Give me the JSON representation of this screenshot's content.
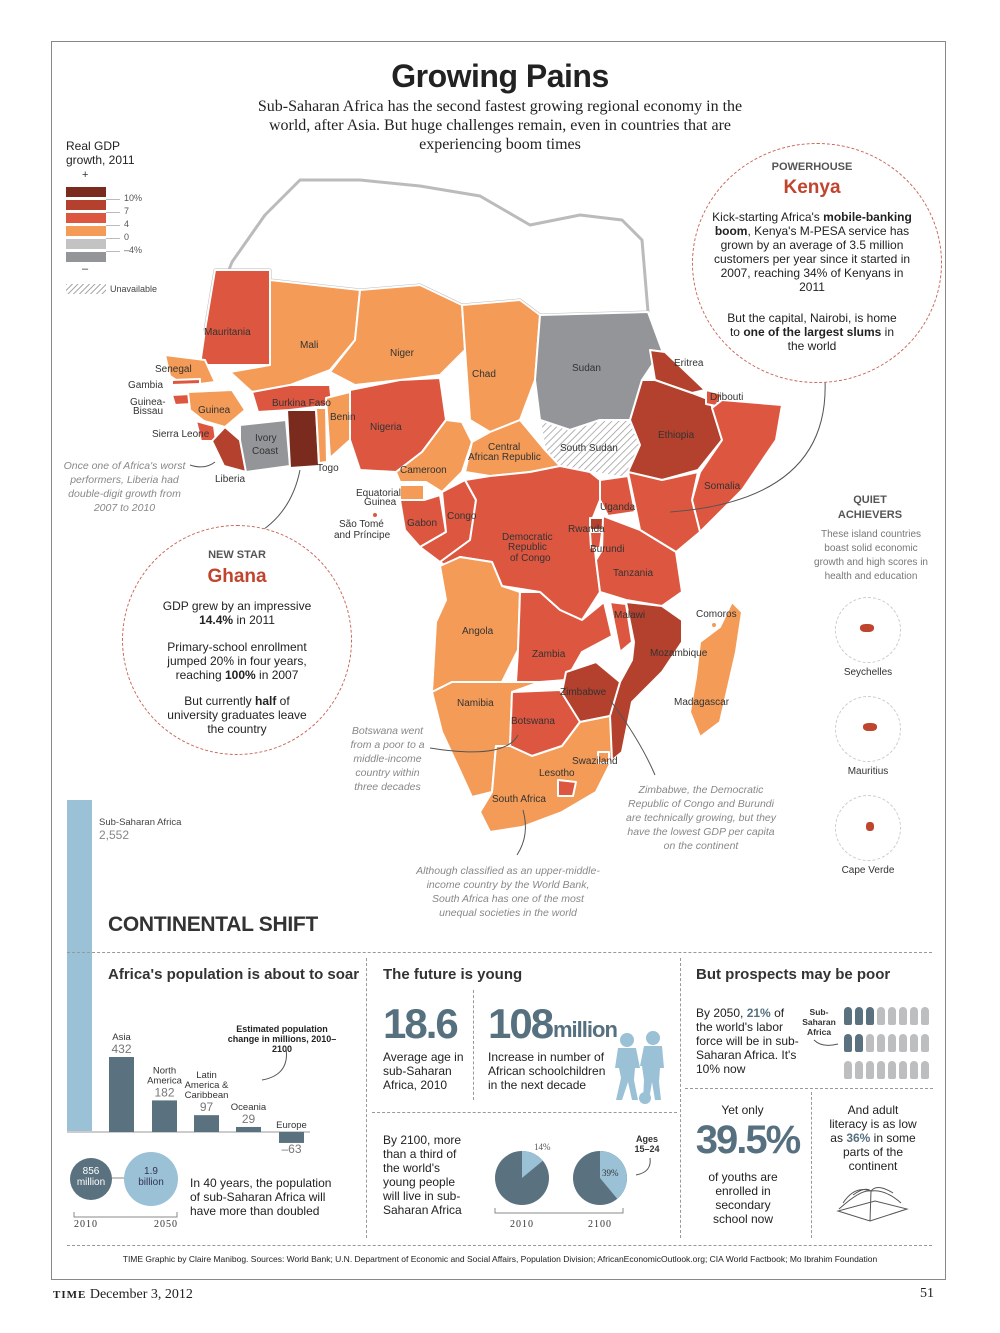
{
  "header": {
    "title": "Growing Pains",
    "subtitle": "Sub-Saharan Africa has the second fastest growing regional economy in the world, after Asia. But huge challenges remain, even in countries that are experiencing boom times"
  },
  "legend": {
    "title": "Real GDP growth, 2011",
    "plus": "+",
    "minus": "–",
    "ticks": [
      "10%",
      "7",
      "4",
      "0",
      "–4%"
    ],
    "colors": [
      "#7b2b1d",
      "#b3412d",
      "#dd5740",
      "#f39b57",
      "#c3c3c3",
      "#939598"
    ],
    "unavailable": "Unavailable"
  },
  "map": {
    "countries": [
      {
        "name": "Mauritania",
        "cat": 2
      },
      {
        "name": "Mali",
        "cat": 3
      },
      {
        "name": "Niger",
        "cat": 3
      },
      {
        "name": "Chad",
        "cat": 3
      },
      {
        "name": "Sudan",
        "cat": 5
      },
      {
        "name": "South Sudan",
        "cat": "na"
      },
      {
        "name": "Eritrea",
        "cat": 1
      },
      {
        "name": "Ethiopia",
        "cat": 1
      },
      {
        "name": "Djibouti",
        "cat": 2
      },
      {
        "name": "Somalia",
        "cat": 2
      },
      {
        "name": "Kenya",
        "cat": 2
      },
      {
        "name": "Uganda",
        "cat": 2
      },
      {
        "name": "Senegal",
        "cat": 3
      },
      {
        "name": "Gambia",
        "cat": 2
      },
      {
        "name": "Guinea-Bissau",
        "cat": 2
      },
      {
        "name": "Guinea",
        "cat": 3
      },
      {
        "name": "Sierra Leone",
        "cat": 2
      },
      {
        "name": "Liberia",
        "cat": 1
      },
      {
        "name": "Ivory Coast",
        "cat": 5
      },
      {
        "name": "Ghana",
        "cat": 0
      },
      {
        "name": "Burkina Faso",
        "cat": 2
      },
      {
        "name": "Togo",
        "cat": 3
      },
      {
        "name": "Benin",
        "cat": 3
      },
      {
        "name": "Nigeria",
        "cat": 2
      },
      {
        "name": "Cameroon",
        "cat": 3
      },
      {
        "name": "Central African Republic",
        "cat": 3
      },
      {
        "name": "Equatorial Guinea",
        "cat": 3
      },
      {
        "name": "Gabon",
        "cat": 2
      },
      {
        "name": "Congo",
        "cat": 2
      },
      {
        "name": "Democratic Republic of Congo",
        "cat": 2
      },
      {
        "name": "Rwanda",
        "cat": 1
      },
      {
        "name": "Burundi",
        "cat": 2
      },
      {
        "name": "Tanzania",
        "cat": 2
      },
      {
        "name": "Angola",
        "cat": 3
      },
      {
        "name": "Zambia",
        "cat": 2
      },
      {
        "name": "Malawi",
        "cat": 2
      },
      {
        "name": "Mozambique",
        "cat": 1
      },
      {
        "name": "Zimbabwe",
        "cat": 1
      },
      {
        "name": "Namibia",
        "cat": 3
      },
      {
        "name": "Botswana",
        "cat": 2
      },
      {
        "name": "South Africa",
        "cat": 3
      },
      {
        "name": "Lesotho",
        "cat": 2
      },
      {
        "name": "Swaziland",
        "cat": 3
      },
      {
        "name": "Madagascar",
        "cat": 3
      }
    ],
    "labels": {
      "mauritania": "Mauritania",
      "mali": "Mali",
      "niger": "Niger",
      "chad": "Chad",
      "sudan": "Sudan",
      "south_sudan": "South Sudan",
      "eritrea": "Eritrea",
      "djibouti": "Djibouti",
      "ethiopia": "Ethiopia",
      "somalia": "Somalia",
      "senegal": "Senegal",
      "gambia": "Gambia",
      "guinea_bissau_1": "Guinea-",
      "guinea_bissau_2": "Bissau",
      "guinea": "Guinea",
      "sierra_leone": "Sierra Leone",
      "liberia": "Liberia",
      "ivory_1": "Ivory",
      "ivory_2": "Coast",
      "burkina": "Burkina Faso",
      "togo": "Togo",
      "benin": "Benin",
      "nigeria": "Nigeria",
      "cameroon": "Cameroon",
      "car_1": "Central",
      "car_2": "African Republic",
      "eqg_1": "Equatorial",
      "eqg_2": "Guinea",
      "stp_1": "São Tomé",
      "stp_2": "and Príncipe",
      "gabon": "Gabon",
      "congo": "Congo",
      "drc_1": "Democratic",
      "drc_2": "Republic",
      "drc_3": "of Congo",
      "rwanda": "Rwanda",
      "burundi": "Burundi",
      "uganda": "Uganda",
      "tanzania": "Tanzania",
      "angola": "Angola",
      "zambia": "Zambia",
      "malawi": "Malawi",
      "mozambique": "Mozambique",
      "comoros": "Comoros",
      "madagascar": "Madagascar",
      "zimbabwe": "Zimbabwe",
      "namibia": "Namibia",
      "botswana": "Botswana",
      "swaziland": "Swaziland",
      "lesotho": "Lesotho",
      "south_africa": "South Africa"
    },
    "notes": {
      "liberia": "Once one of Africa's worst performers, Liberia had double-digit growth from 2007 to 2010",
      "botswana": "Botswana went from a poor to a middle-income country within three decades",
      "south_africa": "Although classified as an upper-middle-income country by the World Bank, South Africa has one of the most unequal societies in the world",
      "zimbabwe": "Zimbabwe, the Democratic Republic of Congo and Burundi are technically growing, but they have the lowest GDP per capita on the continent"
    }
  },
  "kenya": {
    "kicker": "POWERHOUSE",
    "name": "Kenya",
    "p1_a": "Kick-starting Africa's ",
    "p1_b": "mobile-banking boom",
    "p1_c": ", Kenya's M-PESA service has grown by an average of 3.5 million customers per year since it started in 2007, reaching 34% of Kenyans in 2011",
    "p2_a": "But the capital, Nairobi, is home to ",
    "p2_b": "one of the largest slums",
    "p2_c": " in the world"
  },
  "ghana": {
    "kicker": "NEW STAR",
    "name": "Ghana",
    "p1_a": "GDP grew by an impressive ",
    "p1_b": "14.4%",
    "p1_c": " in 2011",
    "p2_a": "Primary-school enrollment jumped 20% in four years, reaching ",
    "p2_b": "100%",
    "p2_c": " in 2007",
    "p3_a": "But currently ",
    "p3_b": "half",
    "p3_c": " of university graduates leave the country"
  },
  "islands": {
    "title_1": "QUIET",
    "title_2": "ACHIEVERS",
    "text": "These island countries boast solid economic growth and high scores in health and education",
    "items": [
      "Seychelles",
      "Mauritius",
      "Cape Verde"
    ]
  },
  "continental": {
    "title": "CONTINENTAL SHIFT",
    "ssa_label": "Sub-Saharan Africa",
    "ssa_value": "2,552"
  },
  "population": {
    "title": "Africa's population is about to soar",
    "chart_caption": "Estimated population change in millions, 2010–2100",
    "bubble_2010": "856 million",
    "bubble_2050": "1.9 billion",
    "year_2010": "2010",
    "year_2050": "2050",
    "text": "In 40 years, the population of sub-Saharan Africa will have more than doubled"
  },
  "young": {
    "title": "The future is young",
    "stat1": "18.6",
    "stat1_text": "Average age in sub-Saharan Africa, 2010",
    "stat2": "108",
    "stat2_unit": "million",
    "stat2_text": "Increase in number of African schoolchildren in the next decade",
    "pie_text": "By 2100, more than a third of the world's young people will live in sub-Saharan Africa",
    "pie_note": "Ages 15–24"
  },
  "prospects": {
    "title": "But prospects may be poor",
    "labor_a": "By 2050, ",
    "labor_b": "21%",
    "labor_c": " of the world's labor force will be in sub-Saharan Africa. It's 10% now",
    "labor_icon_label": "Sub-Saharan Africa",
    "labor_share_pct": 21,
    "enroll_pre": "Yet only",
    "enroll_big": "39.5%",
    "enroll_post": "of youths are enrolled in secondary school now",
    "lit_a": "And adult literacy is as low as ",
    "lit_b": "36%",
    "lit_c": " in some parts of the continent"
  },
  "credits": "TIME Graphic by Claire Manibog. Sources: World Bank; U.N. Department of Economic and Social Affairs, Population Division; AfricanEconomicOutlook.org; CIA World Factbook; Mo Ibrahim Foundation",
  "footer": {
    "brand": "TIME",
    "date": "December 3, 2012",
    "page": "51"
  },
  "chart_data": [
    {
      "type": "bar",
      "title": "Estimated population change in millions, 2010–2100",
      "categories": [
        "Sub-Saharan Africa",
        "Asia",
        "North America",
        "Latin America & Caribbean",
        "Oceania",
        "Europe"
      ],
      "values": [
        2552,
        432,
        182,
        97,
        29,
        -63
      ],
      "value_labels": [
        "2,552",
        "432",
        "182",
        "97",
        "29",
        "–63"
      ],
      "colors": {
        "Sub-Saharan Africa": "#9bc1d6",
        "other": "#5a717f"
      }
    },
    {
      "type": "pie",
      "title": "Ages 15–24",
      "categories": [
        "2010",
        "2100"
      ],
      "series": [
        {
          "name": "2010",
          "values": [
            14,
            86
          ],
          "labels": [
            "14%",
            ""
          ]
        },
        {
          "name": "2100",
          "values": [
            39,
            61
          ],
          "labels": [
            "39%",
            ""
          ]
        }
      ],
      "colors": [
        "#9bc1d6",
        "#5a717f"
      ]
    }
  ]
}
